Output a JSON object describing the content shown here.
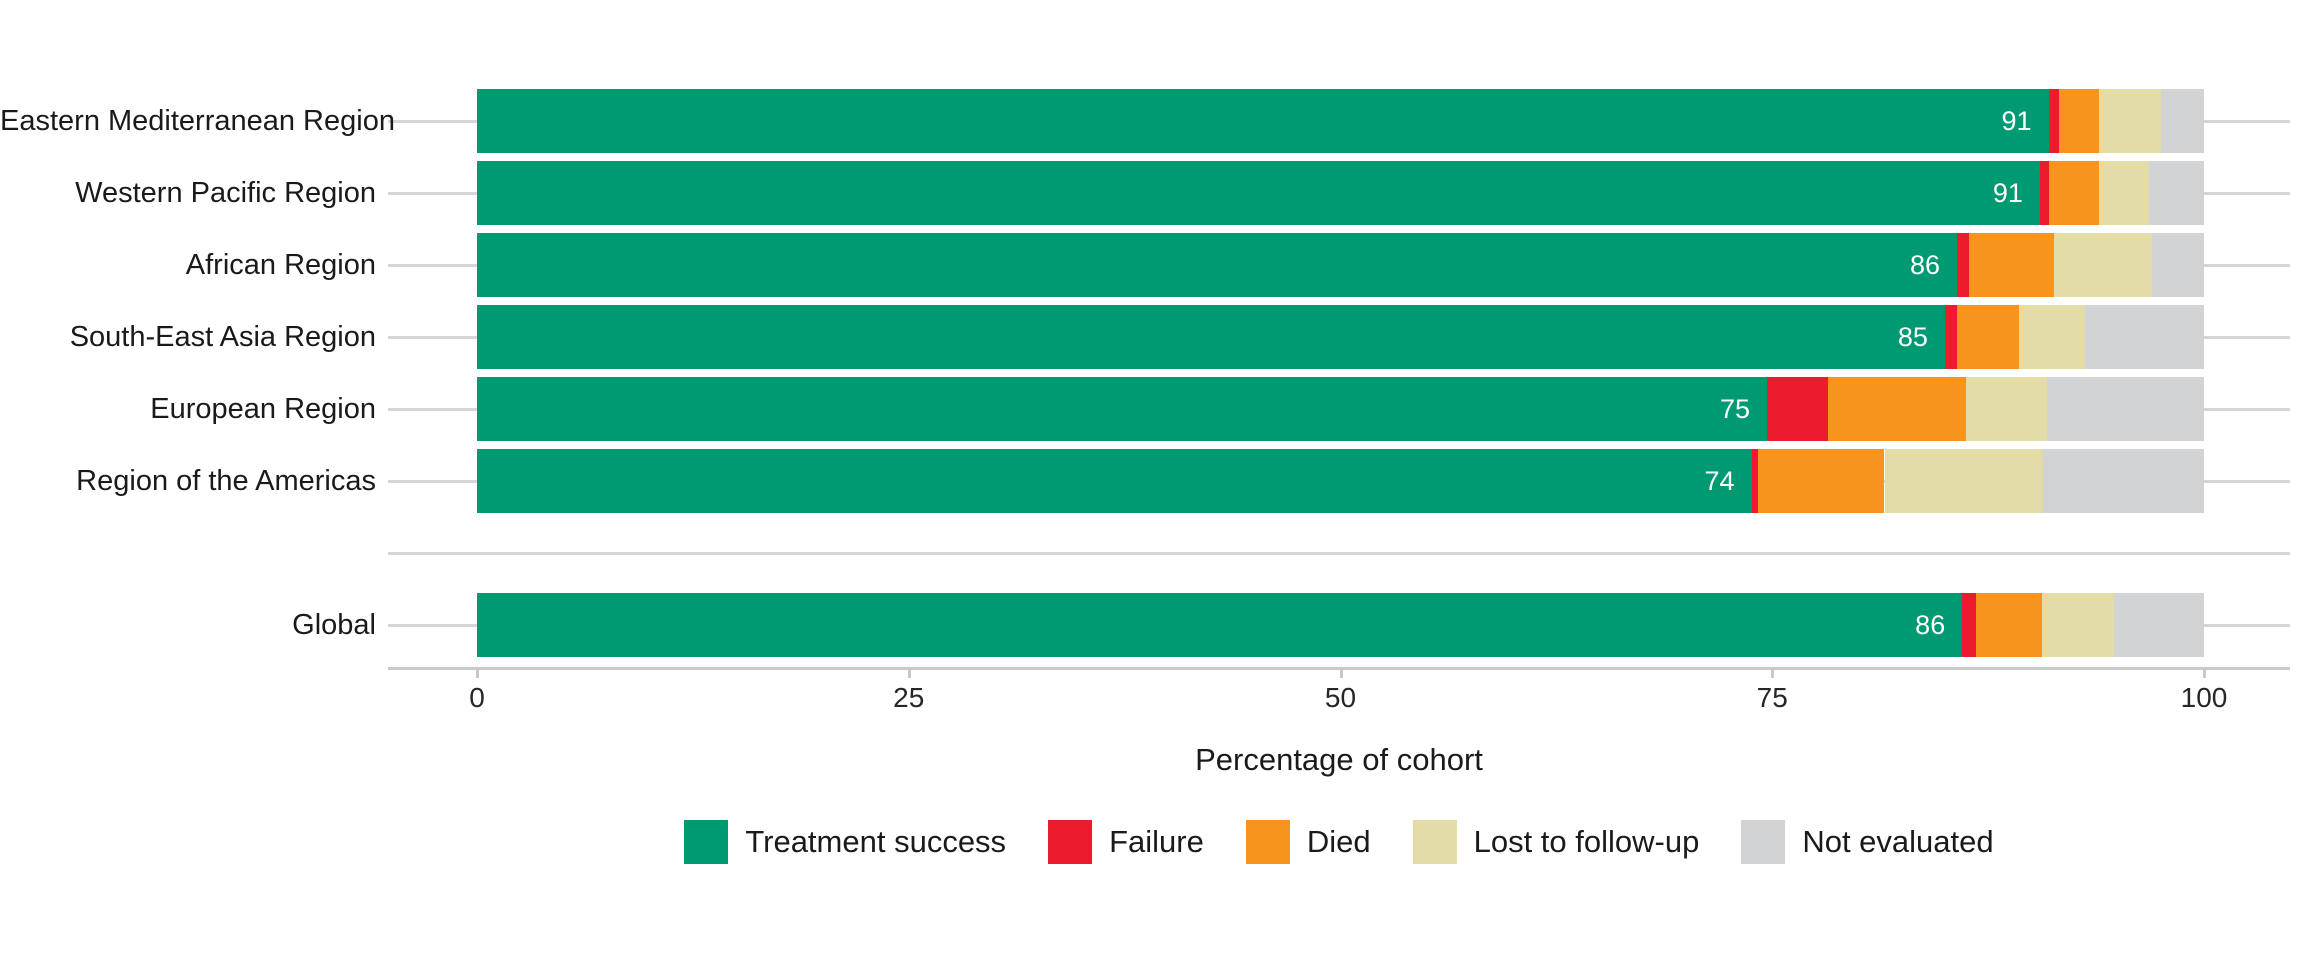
{
  "chart_data": {
    "type": "bar",
    "stacked": true,
    "orientation": "horizontal",
    "title": "",
    "xlabel": "Percentage of cohort",
    "ylabel": "",
    "xlim": [
      0,
      100
    ],
    "xticks": [
      0,
      25,
      50,
      75,
      100
    ],
    "grid": "horizontal-major",
    "legend_position": "bottom",
    "series": [
      {
        "key": "success",
        "name": "Treatment success",
        "color": "#009A72"
      },
      {
        "key": "failure",
        "name": "Failure",
        "color": "#EB1C2D"
      },
      {
        "key": "died",
        "name": "Died",
        "color": "#F7941E"
      },
      {
        "key": "lost",
        "name": "Lost to follow-up",
        "color": "#E4DCA7"
      },
      {
        "key": "not_evaluated",
        "name": "Not evaluated",
        "color": "#D2D3D5"
      }
    ],
    "rows": [
      {
        "category": "Eastern Mediterranean Region",
        "values": [
          91.0,
          0.6,
          2.3,
          3.6,
          2.5
        ],
        "value_label": "91"
      },
      {
        "category": "Western Pacific Region",
        "values": [
          90.5,
          0.5,
          2.9,
          2.9,
          3.2
        ],
        "value_label": "91"
      },
      {
        "category": "African Region",
        "values": [
          85.7,
          0.7,
          4.9,
          5.7,
          3.0
        ],
        "value_label": "86"
      },
      {
        "category": "South-East Asia Region",
        "values": [
          85.0,
          0.7,
          3.6,
          3.8,
          6.9
        ],
        "value_label": "85"
      },
      {
        "category": "European Region",
        "values": [
          74.7,
          3.5,
          8.0,
          4.7,
          9.1
        ],
        "value_label": "75"
      },
      {
        "category": "Region of the Americas",
        "values": [
          73.8,
          0.4,
          7.3,
          9.2,
          9.3
        ],
        "value_label": "74"
      },
      {
        "category": "",
        "values": null,
        "value_label": ""
      },
      {
        "category": "Global",
        "values": [
          86.0,
          0.8,
          3.8,
          4.2,
          5.2
        ],
        "value_label": "86"
      }
    ]
  }
}
